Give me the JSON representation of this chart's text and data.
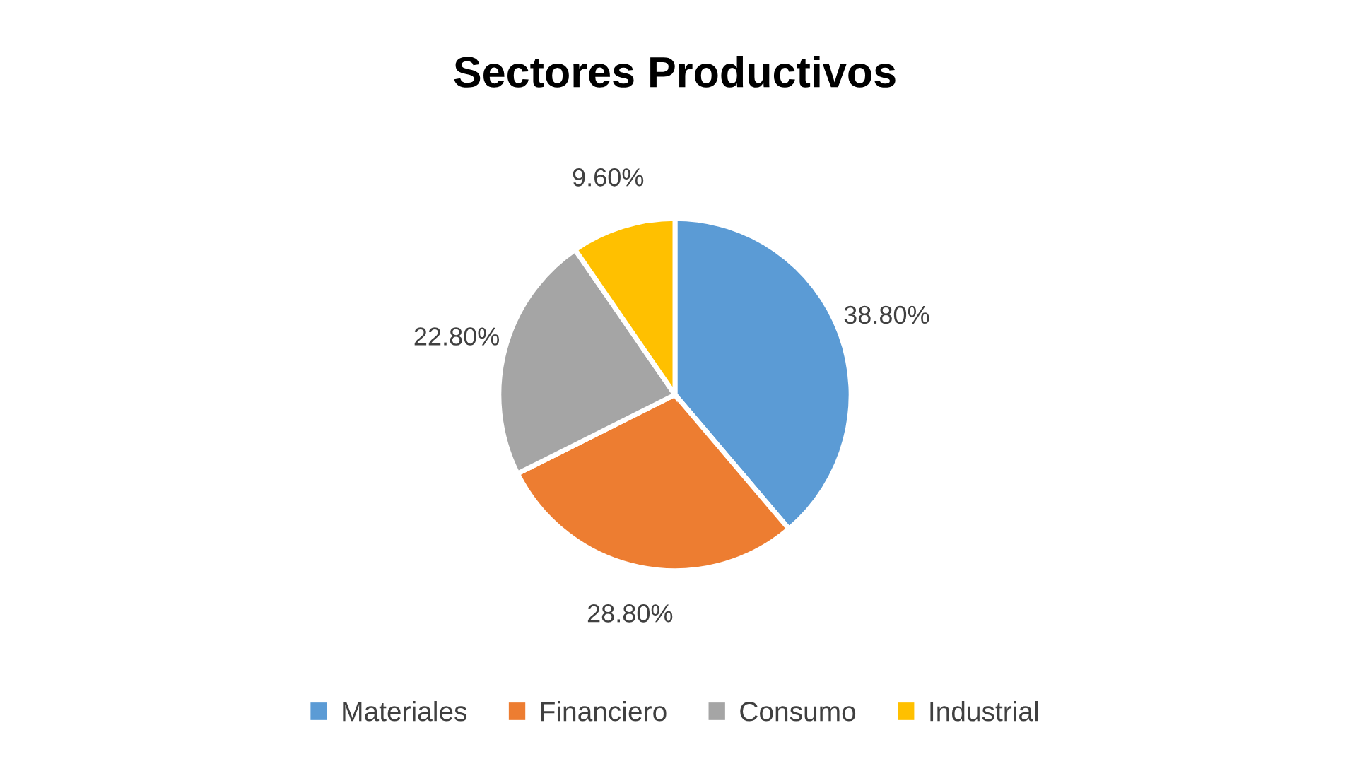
{
  "chart_data": {
    "type": "pie",
    "title": "Sectores Productivos",
    "categories": [
      "Materiales",
      "Financiero",
      "Consumo",
      "Industrial"
    ],
    "values": [
      38.8,
      28.8,
      22.8,
      9.6
    ],
    "colors": [
      "#5b9bd5",
      "#ed7d31",
      "#a5a5a5",
      "#ffc000"
    ],
    "value_labels": [
      "38.80%",
      "28.80%",
      "22.80%",
      "9.60%"
    ],
    "legend": "bottom"
  }
}
